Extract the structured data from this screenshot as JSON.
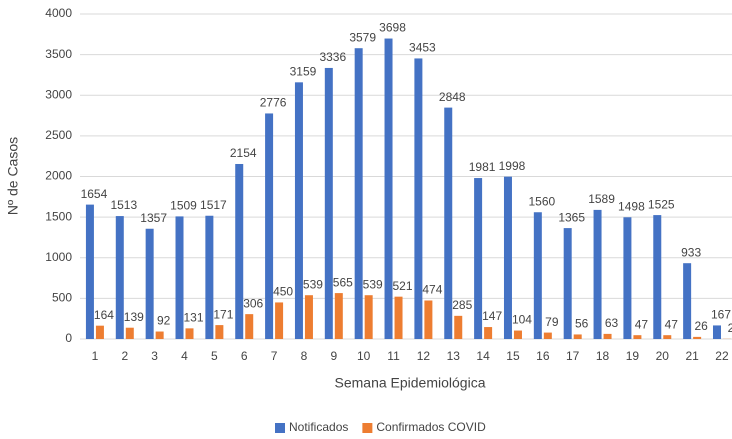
{
  "chart_data": {
    "type": "bar",
    "x_label": "Semana Epidemiológica",
    "y_label": "Nº de Casos",
    "categories": [
      "1",
      "2",
      "3",
      "4",
      "5",
      "6",
      "7",
      "8",
      "9",
      "10",
      "11",
      "12",
      "13",
      "14",
      "15",
      "16",
      "17",
      "18",
      "19",
      "20",
      "21",
      "22"
    ],
    "series": [
      {
        "name": "Notificados",
        "color": "#4472c4",
        "values": [
          1654,
          1513,
          1357,
          1509,
          1517,
          2154,
          2776,
          3159,
          3336,
          3579,
          3698,
          3453,
          2848,
          1981,
          1998,
          1560,
          1365,
          1589,
          1498,
          1525,
          933,
          167
        ]
      },
      {
        "name": "Confirmados COVID",
        "color": "#ed7d31",
        "values": [
          164,
          139,
          92,
          131,
          171,
          306,
          450,
          539,
          565,
          539,
          521,
          474,
          285,
          147,
          104,
          79,
          56,
          63,
          47,
          47,
          26,
          2
        ]
      }
    ],
    "ylim": [
      0,
      4000
    ],
    "yticks": [
      0,
      500,
      1000,
      1500,
      2000,
      2500,
      3000,
      3500,
      4000
    ],
    "grid": true,
    "legend": "bottom"
  }
}
